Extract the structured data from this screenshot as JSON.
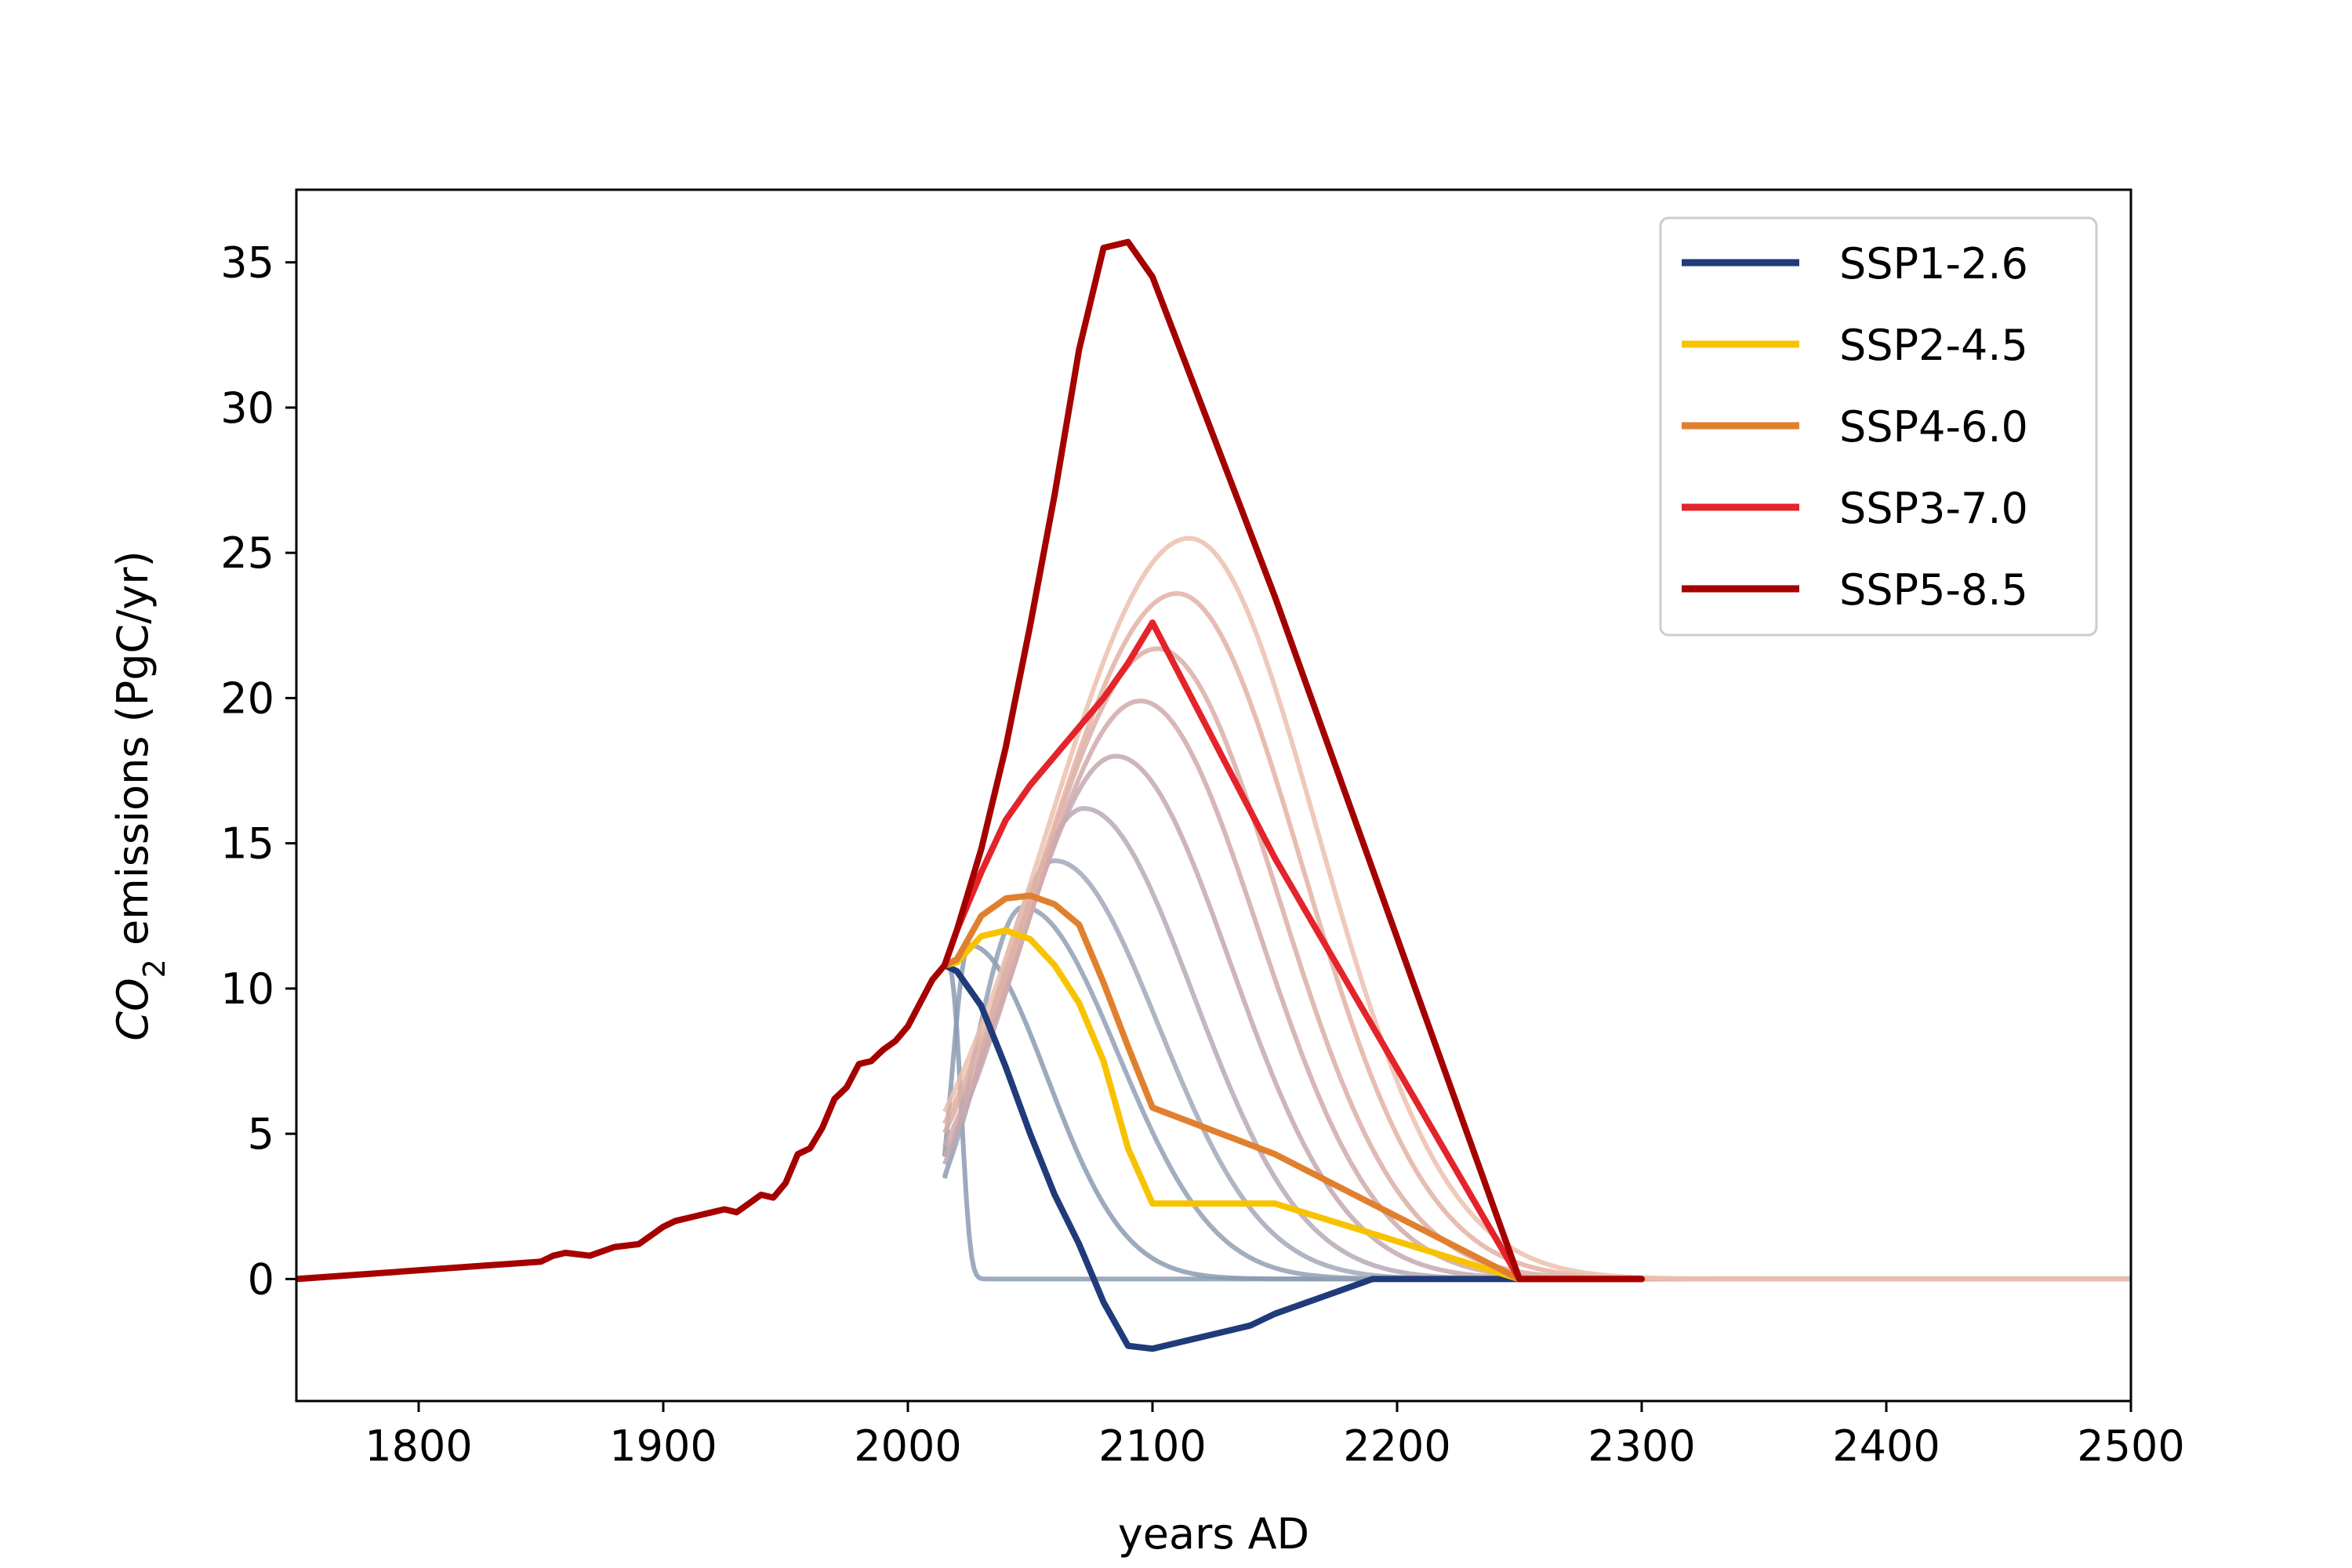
{
  "chart_data": {
    "type": "line",
    "title": "",
    "xlabel": "years AD",
    "ylabel_parts": {
      "base": "CO",
      "subscript": "2",
      "rest": " emissions (PgC/yr)"
    },
    "xlim": [
      1750,
      2500
    ],
    "ylim": [
      -4.2,
      37.5
    ],
    "xticks": [
      1800,
      1900,
      2000,
      2100,
      2200,
      2300,
      2400,
      2500
    ],
    "yticks": [
      0,
      5,
      10,
      15,
      20,
      25,
      30,
      35
    ],
    "grid": false,
    "legend_position": "top-right",
    "historical": {
      "x": [
        1750,
        1800,
        1850,
        1855,
        1860,
        1870,
        1880,
        1890,
        1900,
        1905,
        1910,
        1915,
        1920,
        1925,
        1930,
        1935,
        1940,
        1945,
        1950,
        1955,
        1960,
        1965,
        1970,
        1975,
        1980,
        1985,
        1990,
        1995,
        2000,
        2005,
        2010,
        2015
      ],
      "y": [
        0.0,
        0.3,
        0.6,
        0.8,
        0.9,
        0.8,
        1.1,
        1.2,
        1.8,
        2.0,
        2.1,
        2.2,
        2.3,
        2.4,
        2.3,
        2.6,
        2.9,
        2.8,
        3.3,
        4.3,
        4.5,
        5.2,
        6.2,
        6.6,
        7.4,
        7.5,
        7.9,
        8.2,
        8.7,
        9.5,
        10.3,
        10.8
      ]
    },
    "series": [
      {
        "name": "SSP1-2.6",
        "color": "#1f3b7a",
        "x": [
          2015,
          2020,
          2030,
          2040,
          2050,
          2060,
          2070,
          2080,
          2090,
          2100,
          2110,
          2120,
          2130,
          2140,
          2150,
          2160,
          2170,
          2180,
          2190,
          2200,
          2250,
          2300
        ],
        "y": [
          10.8,
          10.6,
          9.4,
          7.3,
          5.0,
          2.9,
          1.2,
          -0.8,
          -2.3,
          -2.4,
          -2.2,
          -2.0,
          -1.8,
          -1.6,
          -1.2,
          -0.9,
          -0.6,
          -0.3,
          0.0,
          0.0,
          0.0,
          0.0
        ]
      },
      {
        "name": "SSP2-4.5",
        "color": "#f7c300",
        "x": [
          2015,
          2020,
          2030,
          2040,
          2050,
          2060,
          2070,
          2080,
          2090,
          2100,
          2150,
          2250,
          2300
        ],
        "y": [
          10.8,
          10.9,
          11.8,
          12.0,
          11.7,
          10.8,
          9.5,
          7.5,
          4.5,
          2.6,
          2.6,
          0.0,
          0.0
        ]
      },
      {
        "name": "SSP4-6.0",
        "color": "#e0802f",
        "x": [
          2015,
          2020,
          2030,
          2040,
          2050,
          2060,
          2070,
          2080,
          2090,
          2100,
          2150,
          2250,
          2300
        ],
        "y": [
          10.8,
          11.0,
          12.5,
          13.1,
          13.2,
          12.9,
          12.2,
          10.2,
          8.0,
          5.9,
          4.3,
          0.0,
          0.0
        ]
      },
      {
        "name": "SSP3-7.0",
        "color": "#e3242b",
        "x": [
          2015,
          2020,
          2030,
          2040,
          2050,
          2060,
          2070,
          2080,
          2090,
          2100,
          2150,
          2250,
          2300
        ],
        "y": [
          10.8,
          12.0,
          14.0,
          15.8,
          17.0,
          18.0,
          19.0,
          20.0,
          21.2,
          22.6,
          14.5,
          0.0,
          0.0
        ]
      },
      {
        "name": "SSP5-8.5",
        "color": "#a50000",
        "x": [
          2015,
          2020,
          2030,
          2040,
          2050,
          2060,
          2070,
          2080,
          2090,
          2100,
          2150,
          2250,
          2300
        ],
        "y": [
          10.8,
          12.0,
          14.8,
          18.3,
          22.5,
          27.0,
          32.0,
          35.5,
          35.7,
          34.5,
          23.5,
          0.0,
          0.0
        ]
      }
    ],
    "idealized_pathways": [
      {
        "color": "#8a9bb0",
        "peak": 11.0,
        "tc": 2015,
        "riseW": 1,
        "fallW": 8,
        "fallPow": 3
      },
      {
        "color": "#8a9bb0",
        "peak": 11.5,
        "tc": 2025,
        "riseW": 10,
        "fallW": 45,
        "fallPow": 2
      },
      {
        "color": "#92a0b5",
        "peak": 12.8,
        "tc": 2047,
        "riseW": 28,
        "fallW": 55,
        "fallPow": 2
      },
      {
        "color": "#a2a8ba",
        "peak": 14.4,
        "tc": 2060,
        "riseW": 38,
        "fallW": 60,
        "fallPow": 2
      },
      {
        "color": "#b6a9b6",
        "peak": 16.2,
        "tc": 2072,
        "riseW": 48,
        "fallW": 63,
        "fallPow": 2
      },
      {
        "color": "#c4a8b0",
        "peak": 18.0,
        "tc": 2085,
        "riseW": 58,
        "fallW": 66,
        "fallPow": 2
      },
      {
        "color": "#d1a9ab",
        "peak": 19.9,
        "tc": 2095,
        "riseW": 66,
        "fallW": 68,
        "fallPow": 2
      },
      {
        "color": "#dbaea6",
        "peak": 21.7,
        "tc": 2102,
        "riseW": 72,
        "fallW": 70,
        "fallPow": 2
      },
      {
        "color": "#e3b2a4",
        "peak": 23.6,
        "tc": 2110,
        "riseW": 78,
        "fallW": 72,
        "fallPow": 2
      },
      {
        "color": "#ecbfae",
        "peak": 25.5,
        "tc": 2115,
        "riseW": 82,
        "fallW": 74,
        "fallPow": 2
      }
    ]
  }
}
